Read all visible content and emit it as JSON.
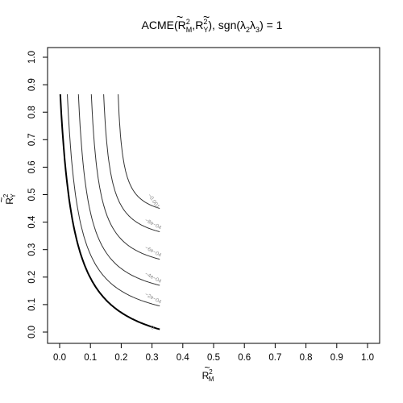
{
  "chart_data": {
    "type": "contour",
    "title_parts": {
      "prefix": "ACME(",
      "x_sym": "R",
      "x_sub": "M",
      "sep": ",",
      "y_sym": "R",
      "y_sub": "Y",
      "mid": "), sgn(",
      "l1": "λ",
      "l1_sub": "2",
      "l2": "λ",
      "l2_sub": "3",
      "suffix": ") = 1",
      "sup": "2",
      "tilde": "~"
    },
    "xlabel": {
      "sym": "R",
      "sub": "M",
      "sup": "2",
      "tilde": "~"
    },
    "ylabel": {
      "sym": "R",
      "sub": "Y",
      "sup": "2",
      "tilde": "~"
    },
    "xlim": [
      0,
      1
    ],
    "ylim": [
      0,
      1
    ],
    "xticks": [
      "0.0",
      "0.1",
      "0.2",
      "0.3",
      "0.4",
      "0.5",
      "0.6",
      "0.7",
      "0.8",
      "0.9",
      "1.0"
    ],
    "yticks": [
      "0.0",
      "0.1",
      "0.2",
      "0.3",
      "0.4",
      "0.5",
      "0.6",
      "0.7",
      "0.8",
      "0.9",
      "1.0"
    ],
    "domain_max": {
      "x": 0.325,
      "y": 0.865
    },
    "grid": false,
    "contours": [
      {
        "level": "0",
        "label": "0",
        "x0": 0.002,
        "y_end": 0.01,
        "bold": true
      },
      {
        "level": "-2e-04",
        "label": "−2e−04",
        "x0": 0.025,
        "y_end": 0.095
      },
      {
        "level": "-4e-04",
        "label": "−4e−04",
        "x0": 0.061,
        "y_end": 0.17
      },
      {
        "level": "-6e-04",
        "label": "−6e−04",
        "x0": 0.103,
        "y_end": 0.265
      },
      {
        "level": "-8e-04",
        "label": "−8e−04",
        "x0": 0.143,
        "y_end": 0.365
      },
      {
        "level": "-0.001",
        "label": "−0.001",
        "x0": 0.19,
        "y_end": 0.45
      }
    ]
  }
}
